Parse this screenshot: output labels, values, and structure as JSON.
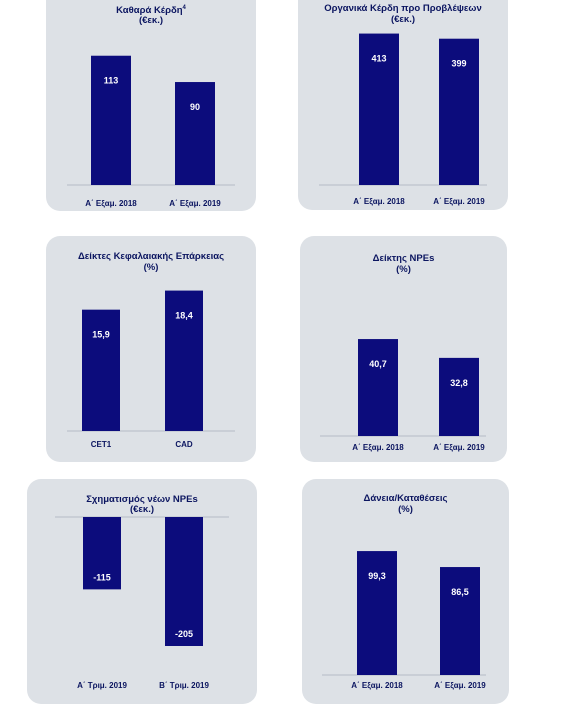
{
  "colors": {
    "panel_bg": "#dde1e6",
    "bar": "#0c0c7c",
    "title": "#0b1560"
  },
  "chart_data": [
    {
      "type": "bar",
      "title": "Καθαρά Κέρδη",
      "title_sup": "4",
      "subtitle": "(€εκ.)",
      "categories": [
        "Α΄ Εξαμ. 2018",
        "Α΄ Εξαμ. 2019"
      ],
      "values": [
        113,
        90
      ],
      "labels": [
        "113",
        "90"
      ],
      "ylim": [
        0,
        125
      ]
    },
    {
      "type": "bar",
      "title": "Οργανικά Κέρδη προ Προβλέψεων",
      "subtitle": "(€εκ.)",
      "categories": [
        "Α΄ Εξαμ. 2018",
        "Α΄ Εξαμ. 2019"
      ],
      "values": [
        413,
        399
      ],
      "labels": [
        "413",
        "399"
      ],
      "ylim": [
        0,
        420
      ]
    },
    {
      "type": "bar",
      "title": "Δείκτες Κεφαλαιακής Επάρκειας",
      "subtitle": "(%)",
      "categories": [
        "CET1",
        "CAD"
      ],
      "values": [
        15.9,
        18.4
      ],
      "labels": [
        "15,9",
        "18,4"
      ],
      "ylim": [
        0,
        19
      ]
    },
    {
      "type": "bar",
      "title": "Δείκτης NPEs",
      "subtitle": "(%)",
      "categories": [
        "Α΄ Εξαμ. 2018",
        "Α΄ Εξαμ. 2019"
      ],
      "values": [
        40.7,
        32.8
      ],
      "labels": [
        "40,7",
        "32,8"
      ],
      "ylim": [
        0,
        55
      ]
    },
    {
      "type": "bar",
      "title": "Σχηματισμός νέων NPEs",
      "subtitle": "(€εκ.)",
      "categories": [
        "Α΄ Τριμ. 2019",
        "Β΄ Τριμ. 2019"
      ],
      "values": [
        -115,
        -205
      ],
      "labels": [
        "-115",
        "-205"
      ],
      "ylim": [
        -205,
        0
      ]
    },
    {
      "type": "bar",
      "title": "Δάνεια/Καταθέσεις",
      "subtitle": "(%)",
      "categories": [
        "Α΄ Εξαμ. 2018",
        "Α΄ Εξαμ. 2019"
      ],
      "values": [
        99.3,
        86.5
      ],
      "labels": [
        "99,3",
        "86,5"
      ],
      "ylim": [
        0,
        125
      ]
    }
  ]
}
